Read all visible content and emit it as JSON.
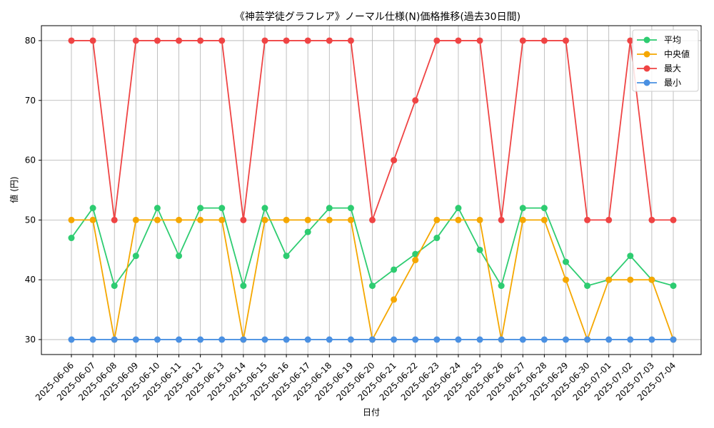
{
  "chart_data": {
    "type": "line",
    "title": "《神芸学徒グラフレア》ノーマル仕様(N)価格推移(過去30日間)",
    "xlabel": "日付",
    "ylabel": "値 (円)",
    "ylim": [
      27.5,
      82.5
    ],
    "yticks": [
      30,
      40,
      50,
      60,
      70,
      80
    ],
    "grid": true,
    "legend_position": "top-right",
    "categories": [
      "2025-06-06",
      "2025-06-07",
      "2025-06-08",
      "2025-06-09",
      "2025-06-10",
      "2025-06-11",
      "2025-06-12",
      "2025-06-13",
      "2025-06-14",
      "2025-06-15",
      "2025-06-16",
      "2025-06-17",
      "2025-06-18",
      "2025-06-19",
      "2025-06-20",
      "2025-06-21",
      "2025-06-22",
      "2025-06-23",
      "2025-06-24",
      "2025-06-25",
      "2025-06-26",
      "2025-06-27",
      "2025-06-28",
      "2025-06-29",
      "2025-06-30",
      "2025-07-01",
      "2025-07-02",
      "2025-07-03",
      "2025-07-04"
    ],
    "series": [
      {
        "name": "平均",
        "color": "#2ecc71",
        "values": [
          47,
          52,
          39,
          44,
          52,
          44,
          52,
          52,
          39,
          52,
          44,
          48,
          52,
          52,
          39,
          41.7,
          44.3,
          47,
          52,
          45,
          39,
          52,
          52,
          43,
          39,
          40,
          44,
          40,
          39
        ]
      },
      {
        "name": "中央値",
        "color": "#f5a700",
        "values": [
          50,
          50,
          30,
          50,
          50,
          50,
          50,
          50,
          30,
          50,
          50,
          50,
          50,
          50,
          30,
          36.7,
          43.3,
          50,
          50,
          50,
          30,
          50,
          50,
          40,
          30,
          40,
          40,
          40,
          30
        ]
      },
      {
        "name": "最大",
        "color": "#ef4444",
        "values": [
          80,
          80,
          50,
          80,
          80,
          80,
          80,
          80,
          50,
          80,
          80,
          80,
          80,
          80,
          50,
          60,
          70,
          80,
          80,
          80,
          50,
          80,
          80,
          80,
          50,
          50,
          80,
          50,
          50
        ]
      },
      {
        "name": "最小",
        "color": "#4a90e2",
        "values": [
          30,
          30,
          30,
          30,
          30,
          30,
          30,
          30,
          30,
          30,
          30,
          30,
          30,
          30,
          30,
          30,
          30,
          30,
          30,
          30,
          30,
          30,
          30,
          30,
          30,
          30,
          30,
          30,
          30
        ]
      }
    ]
  }
}
